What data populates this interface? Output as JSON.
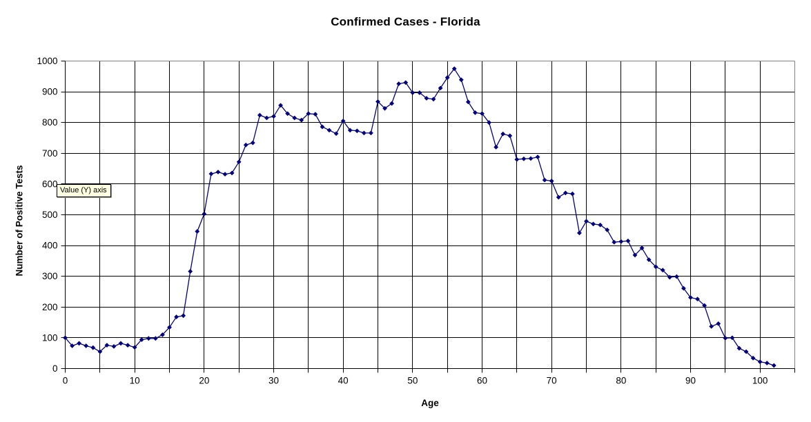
{
  "window": {
    "background": "#ffffff"
  },
  "tooltip": {
    "text": "Value (Y) axis",
    "bg": "#ffffe1"
  },
  "colors": {
    "series": "#000080",
    "gridline": "#000000",
    "plot_border": "#808080",
    "axis": "#000000",
    "text": "#000000"
  },
  "chart_data": {
    "type": "line",
    "title": "Confirmed Cases - Florida",
    "xlabel": "Age",
    "ylabel": "Number of Positive Tests",
    "legend": "none",
    "grid": "on",
    "marker": "diamond",
    "series_color": "#000080",
    "xlim": [
      0,
      105
    ],
    "ylim": [
      0,
      1000
    ],
    "x_grid_step": 5,
    "y_tick_step": 100,
    "x_tick_labels": [
      0,
      10,
      20,
      30,
      40,
      50,
      60,
      70,
      80,
      90,
      100
    ],
    "y_tick_labels": [
      0,
      100,
      200,
      300,
      400,
      500,
      600,
      700,
      800,
      900,
      1000
    ],
    "x": [
      0,
      1,
      2,
      3,
      4,
      5,
      6,
      7,
      8,
      9,
      10,
      11,
      12,
      13,
      14,
      15,
      16,
      17,
      18,
      19,
      20,
      21,
      22,
      23,
      24,
      25,
      26,
      27,
      28,
      29,
      30,
      31,
      32,
      33,
      34,
      35,
      36,
      37,
      38,
      39,
      40,
      41,
      42,
      43,
      44,
      45,
      46,
      47,
      48,
      49,
      50,
      51,
      52,
      53,
      54,
      55,
      56,
      57,
      58,
      59,
      60,
      61,
      62,
      63,
      64,
      65,
      66,
      67,
      68,
      69,
      70,
      71,
      72,
      73,
      74,
      75,
      76,
      77,
      78,
      79,
      80,
      81,
      82,
      83,
      84,
      85,
      86,
      87,
      88,
      89,
      90,
      91,
      92,
      93,
      94,
      95,
      96,
      97,
      98,
      99,
      100,
      101,
      102
    ],
    "values": [
      100,
      74,
      82,
      74,
      68,
      55,
      76,
      72,
      82,
      76,
      69,
      94,
      98,
      98,
      110,
      134,
      168,
      172,
      316,
      446,
      503,
      633,
      639,
      632,
      636,
      672,
      727,
      734,
      824,
      815,
      820,
      856,
      829,
      815,
      808,
      829,
      827,
      786,
      775,
      764,
      805,
      775,
      773,
      766,
      766,
      868,
      846,
      862,
      926,
      930,
      897,
      897,
      879,
      876,
      912,
      946,
      975,
      939,
      867,
      832,
      829,
      800,
      720,
      763,
      757,
      680,
      682,
      683,
      688,
      613,
      610,
      557,
      571,
      568,
      441,
      479,
      470,
      467,
      451,
      411,
      413,
      415,
      369,
      392,
      354,
      331,
      320,
      297,
      299,
      261,
      231,
      226,
      205,
      137,
      146,
      99,
      100,
      66,
      55,
      34,
      22,
      18,
      10
    ]
  }
}
